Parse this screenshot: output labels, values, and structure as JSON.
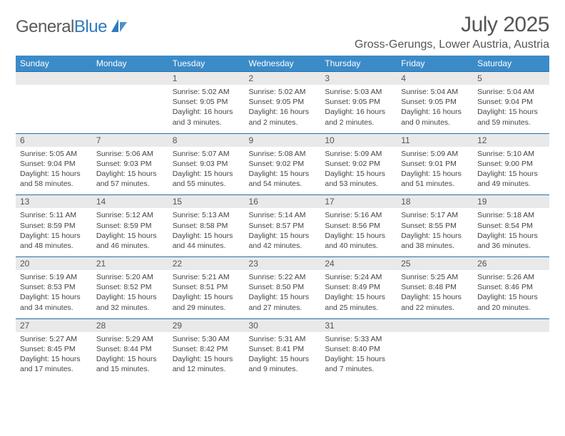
{
  "logo": {
    "word1": "General",
    "word2": "Blue"
  },
  "title": {
    "month": "July 2025",
    "location": "Gross-Gerungs, Lower Austria, Austria"
  },
  "colors": {
    "header_bg": "#3b8bc8",
    "header_text": "#ffffff",
    "row_rule": "#2a6ea5",
    "daynum_bg": "#e9e9e9",
    "text": "#444444",
    "logo_gray": "#5a5a5a",
    "logo_blue": "#2f7bbf"
  },
  "weekdays": [
    "Sunday",
    "Monday",
    "Tuesday",
    "Wednesday",
    "Thursday",
    "Friday",
    "Saturday"
  ],
  "weeks": [
    [
      null,
      null,
      {
        "n": "1",
        "sr": "Sunrise: 5:02 AM",
        "ss": "Sunset: 9:05 PM",
        "dl": "Daylight: 16 hours and 3 minutes."
      },
      {
        "n": "2",
        "sr": "Sunrise: 5:02 AM",
        "ss": "Sunset: 9:05 PM",
        "dl": "Daylight: 16 hours and 2 minutes."
      },
      {
        "n": "3",
        "sr": "Sunrise: 5:03 AM",
        "ss": "Sunset: 9:05 PM",
        "dl": "Daylight: 16 hours and 2 minutes."
      },
      {
        "n": "4",
        "sr": "Sunrise: 5:04 AM",
        "ss": "Sunset: 9:05 PM",
        "dl": "Daylight: 16 hours and 0 minutes."
      },
      {
        "n": "5",
        "sr": "Sunrise: 5:04 AM",
        "ss": "Sunset: 9:04 PM",
        "dl": "Daylight: 15 hours and 59 minutes."
      }
    ],
    [
      {
        "n": "6",
        "sr": "Sunrise: 5:05 AM",
        "ss": "Sunset: 9:04 PM",
        "dl": "Daylight: 15 hours and 58 minutes."
      },
      {
        "n": "7",
        "sr": "Sunrise: 5:06 AM",
        "ss": "Sunset: 9:03 PM",
        "dl": "Daylight: 15 hours and 57 minutes."
      },
      {
        "n": "8",
        "sr": "Sunrise: 5:07 AM",
        "ss": "Sunset: 9:03 PM",
        "dl": "Daylight: 15 hours and 55 minutes."
      },
      {
        "n": "9",
        "sr": "Sunrise: 5:08 AM",
        "ss": "Sunset: 9:02 PM",
        "dl": "Daylight: 15 hours and 54 minutes."
      },
      {
        "n": "10",
        "sr": "Sunrise: 5:09 AM",
        "ss": "Sunset: 9:02 PM",
        "dl": "Daylight: 15 hours and 53 minutes."
      },
      {
        "n": "11",
        "sr": "Sunrise: 5:09 AM",
        "ss": "Sunset: 9:01 PM",
        "dl": "Daylight: 15 hours and 51 minutes."
      },
      {
        "n": "12",
        "sr": "Sunrise: 5:10 AM",
        "ss": "Sunset: 9:00 PM",
        "dl": "Daylight: 15 hours and 49 minutes."
      }
    ],
    [
      {
        "n": "13",
        "sr": "Sunrise: 5:11 AM",
        "ss": "Sunset: 8:59 PM",
        "dl": "Daylight: 15 hours and 48 minutes."
      },
      {
        "n": "14",
        "sr": "Sunrise: 5:12 AM",
        "ss": "Sunset: 8:59 PM",
        "dl": "Daylight: 15 hours and 46 minutes."
      },
      {
        "n": "15",
        "sr": "Sunrise: 5:13 AM",
        "ss": "Sunset: 8:58 PM",
        "dl": "Daylight: 15 hours and 44 minutes."
      },
      {
        "n": "16",
        "sr": "Sunrise: 5:14 AM",
        "ss": "Sunset: 8:57 PM",
        "dl": "Daylight: 15 hours and 42 minutes."
      },
      {
        "n": "17",
        "sr": "Sunrise: 5:16 AM",
        "ss": "Sunset: 8:56 PM",
        "dl": "Daylight: 15 hours and 40 minutes."
      },
      {
        "n": "18",
        "sr": "Sunrise: 5:17 AM",
        "ss": "Sunset: 8:55 PM",
        "dl": "Daylight: 15 hours and 38 minutes."
      },
      {
        "n": "19",
        "sr": "Sunrise: 5:18 AM",
        "ss": "Sunset: 8:54 PM",
        "dl": "Daylight: 15 hours and 36 minutes."
      }
    ],
    [
      {
        "n": "20",
        "sr": "Sunrise: 5:19 AM",
        "ss": "Sunset: 8:53 PM",
        "dl": "Daylight: 15 hours and 34 minutes."
      },
      {
        "n": "21",
        "sr": "Sunrise: 5:20 AM",
        "ss": "Sunset: 8:52 PM",
        "dl": "Daylight: 15 hours and 32 minutes."
      },
      {
        "n": "22",
        "sr": "Sunrise: 5:21 AM",
        "ss": "Sunset: 8:51 PM",
        "dl": "Daylight: 15 hours and 29 minutes."
      },
      {
        "n": "23",
        "sr": "Sunrise: 5:22 AM",
        "ss": "Sunset: 8:50 PM",
        "dl": "Daylight: 15 hours and 27 minutes."
      },
      {
        "n": "24",
        "sr": "Sunrise: 5:24 AM",
        "ss": "Sunset: 8:49 PM",
        "dl": "Daylight: 15 hours and 25 minutes."
      },
      {
        "n": "25",
        "sr": "Sunrise: 5:25 AM",
        "ss": "Sunset: 8:48 PM",
        "dl": "Daylight: 15 hours and 22 minutes."
      },
      {
        "n": "26",
        "sr": "Sunrise: 5:26 AM",
        "ss": "Sunset: 8:46 PM",
        "dl": "Daylight: 15 hours and 20 minutes."
      }
    ],
    [
      {
        "n": "27",
        "sr": "Sunrise: 5:27 AM",
        "ss": "Sunset: 8:45 PM",
        "dl": "Daylight: 15 hours and 17 minutes."
      },
      {
        "n": "28",
        "sr": "Sunrise: 5:29 AM",
        "ss": "Sunset: 8:44 PM",
        "dl": "Daylight: 15 hours and 15 minutes."
      },
      {
        "n": "29",
        "sr": "Sunrise: 5:30 AM",
        "ss": "Sunset: 8:42 PM",
        "dl": "Daylight: 15 hours and 12 minutes."
      },
      {
        "n": "30",
        "sr": "Sunrise: 5:31 AM",
        "ss": "Sunset: 8:41 PM",
        "dl": "Daylight: 15 hours and 9 minutes."
      },
      {
        "n": "31",
        "sr": "Sunrise: 5:33 AM",
        "ss": "Sunset: 8:40 PM",
        "dl": "Daylight: 15 hours and 7 minutes."
      },
      null,
      null
    ]
  ]
}
